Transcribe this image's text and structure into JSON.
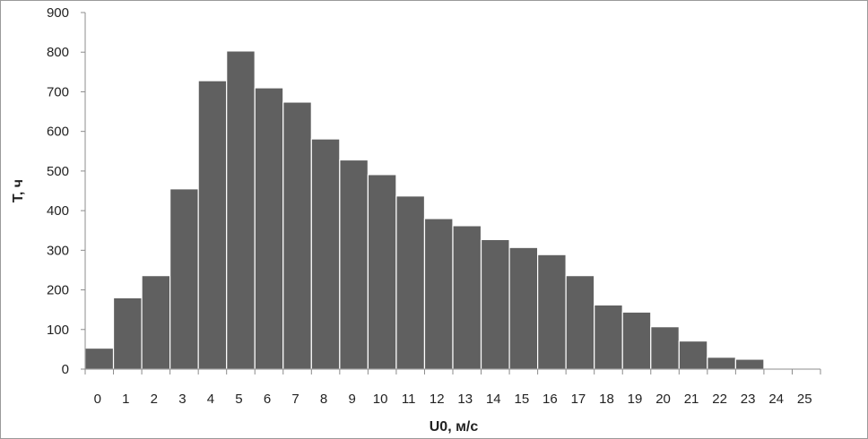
{
  "chart_data": {
    "type": "bar",
    "categories": [
      "0",
      "1",
      "2",
      "3",
      "4",
      "5",
      "6",
      "7",
      "8",
      "9",
      "10",
      "11",
      "12",
      "13",
      "14",
      "15",
      "16",
      "17",
      "18",
      "19",
      "20",
      "21",
      "22",
      "23",
      "24",
      "25"
    ],
    "values": [
      53,
      180,
      236,
      455,
      728,
      803,
      710,
      674,
      581,
      528,
      491,
      437,
      380,
      362,
      327,
      307,
      289,
      236,
      162,
      144,
      107,
      71,
      30,
      25,
      0,
      0
    ],
    "xlabel": "U0, м/с",
    "ylabel": "T, ч",
    "ylim": [
      0,
      900
    ],
    "yticks": [
      0,
      100,
      200,
      300,
      400,
      500,
      600,
      700,
      800,
      900
    ],
    "grid": false,
    "legend": "none",
    "colors": {
      "bar": "#606060",
      "bar_edge": "#ffffff",
      "axis": "#8c8c8c",
      "text": "#222222"
    }
  }
}
